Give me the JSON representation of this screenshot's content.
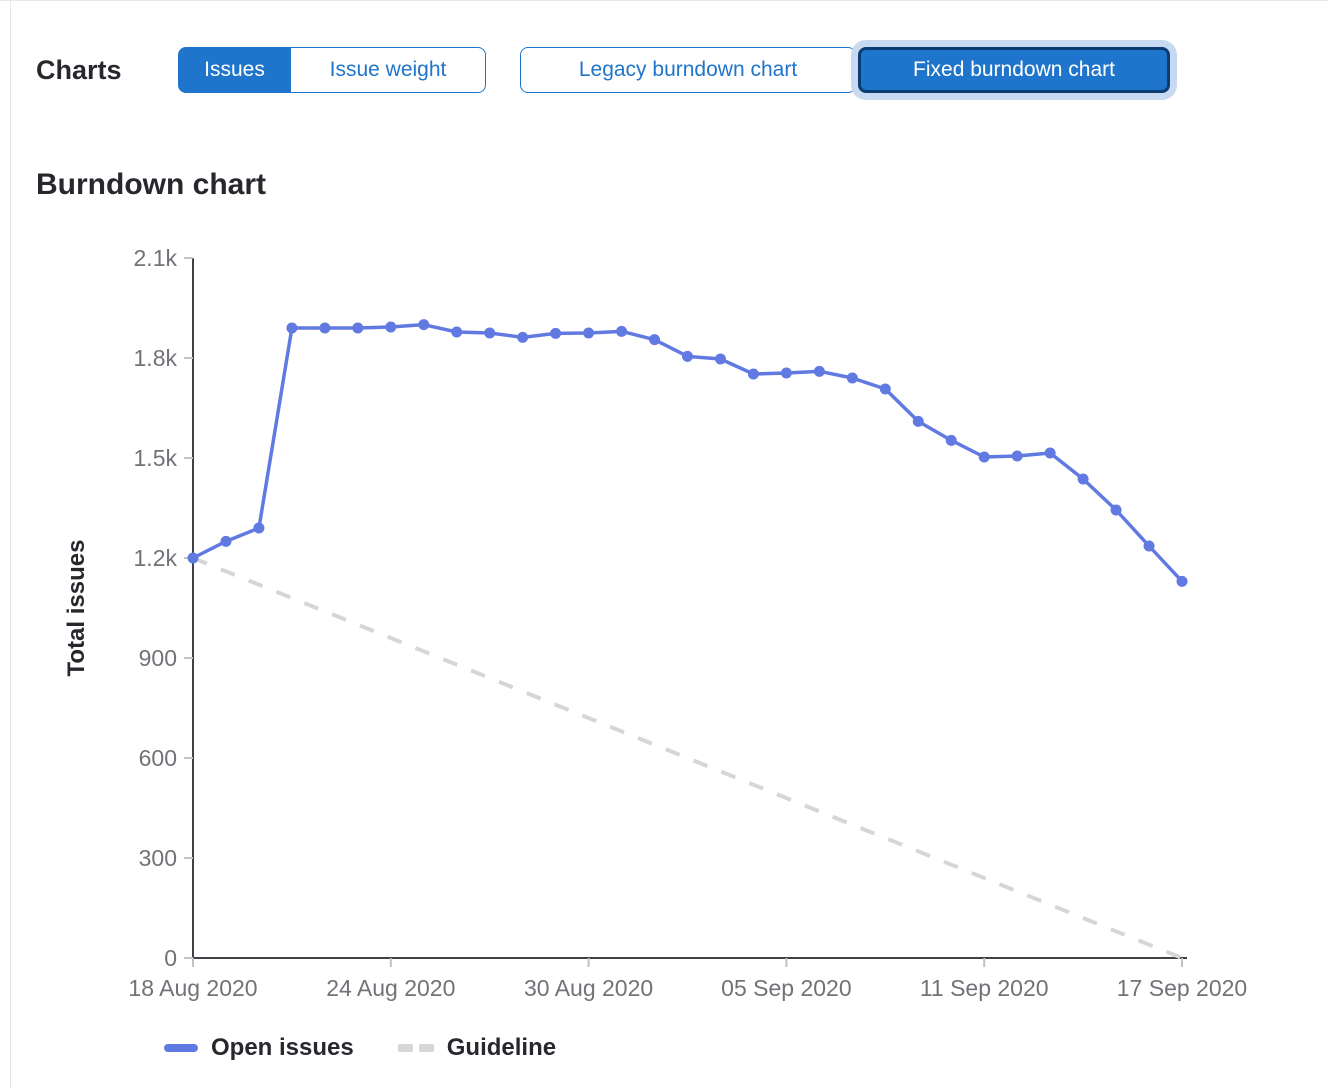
{
  "header": {
    "charts_label": "Charts",
    "metric_toggle": {
      "options": [
        "Issues",
        "Issue weight"
      ],
      "selected": "Issues"
    },
    "chart_type_toggle": {
      "options": [
        "Legacy burndown chart",
        "Fixed burndown chart"
      ],
      "selected": "Fixed burndown chart"
    }
  },
  "section_title": "Burndown chart",
  "colors": {
    "accent_blue": "#1f75cb",
    "selected_border": "#0b3c74",
    "focus_ring": "#c8daf1",
    "series_blue": "#617ae2",
    "guideline_gray": "#d6d6d6",
    "axis_line": "#404047",
    "axis_text": "#737278"
  },
  "chart_data": {
    "type": "line",
    "title": "Burndown chart",
    "xlabel": "",
    "ylabel": "Total issues",
    "ylim": [
      0,
      2100
    ],
    "grid": false,
    "legend_position": "bottom",
    "y_ticks": [
      {
        "label": "0",
        "value": 0
      },
      {
        "label": "300",
        "value": 300
      },
      {
        "label": "600",
        "value": 600
      },
      {
        "label": "900",
        "value": 900
      },
      {
        "label": "1.2k",
        "value": 1200
      },
      {
        "label": "1.5k",
        "value": 1500
      },
      {
        "label": "1.8k",
        "value": 1800
      },
      {
        "label": "2.1k",
        "value": 2100
      }
    ],
    "x_ticks": [
      "18 Aug 2020",
      "24 Aug 2020",
      "30 Aug 2020",
      "05 Sep 2020",
      "11 Sep 2020",
      "17 Sep 2020"
    ],
    "x": [
      "18 Aug 2020",
      "19 Aug 2020",
      "20 Aug 2020",
      "21 Aug 2020",
      "22 Aug 2020",
      "23 Aug 2020",
      "24 Aug 2020",
      "25 Aug 2020",
      "26 Aug 2020",
      "27 Aug 2020",
      "28 Aug 2020",
      "29 Aug 2020",
      "30 Aug 2020",
      "31 Aug 2020",
      "01 Sep 2020",
      "02 Sep 2020",
      "03 Sep 2020",
      "04 Sep 2020",
      "05 Sep 2020",
      "06 Sep 2020",
      "07 Sep 2020",
      "08 Sep 2020",
      "09 Sep 2020",
      "10 Sep 2020",
      "11 Sep 2020",
      "12 Sep 2020",
      "13 Sep 2020",
      "14 Sep 2020",
      "15 Sep 2020",
      "16 Sep 2020",
      "17 Sep 2020"
    ],
    "series": [
      {
        "name": "Open issues",
        "color": "#617ae2",
        "style": "solid",
        "values": [
          1200,
          1250,
          1290,
          1890,
          1890,
          1890,
          1893,
          1900,
          1878,
          1875,
          1862,
          1874,
          1875,
          1880,
          1855,
          1805,
          1797,
          1752,
          1755,
          1760,
          1740,
          1707,
          1610,
          1553,
          1503,
          1506,
          1515,
          1437,
          1344,
          1236,
          1130
        ]
      },
      {
        "name": "Guideline",
        "color": "#d6d6d6",
        "style": "dashed",
        "values": [
          1200,
          1160,
          1120,
          1080,
          1040,
          1000,
          960,
          920,
          880,
          840,
          800,
          760,
          720,
          680,
          640,
          600,
          560,
          520,
          480,
          440,
          400,
          360,
          320,
          280,
          240,
          200,
          160,
          120,
          80,
          40,
          0
        ]
      }
    ]
  }
}
